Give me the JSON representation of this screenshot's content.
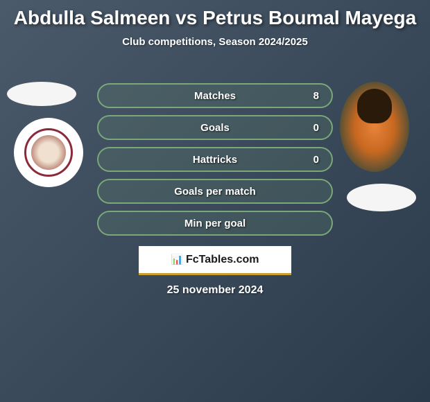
{
  "title": "Abdulla Salmeen vs Petrus Boumal Mayega",
  "subtitle": "Club competitions, Season 2024/2025",
  "stats": [
    {
      "label": "Matches",
      "value": "8"
    },
    {
      "label": "Goals",
      "value": "0"
    },
    {
      "label": "Hattricks",
      "value": "0"
    },
    {
      "label": "Goals per match",
      "value": ""
    },
    {
      "label": "Min per goal",
      "value": ""
    }
  ],
  "brand": "FcTables.com",
  "date": "25 november 2024",
  "colors": {
    "bar_border": "#7aa87a",
    "background_start": "#4a5a6a",
    "background_end": "#2a3a4a",
    "text": "#ffffff",
    "brand_accent": "#c8a030"
  }
}
